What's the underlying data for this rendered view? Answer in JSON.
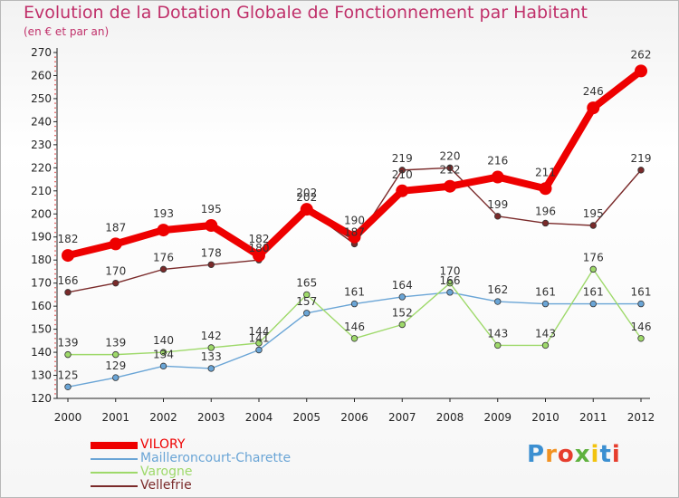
{
  "header": {
    "title": "Evolution de la Dotation Globale de Fonctionnement par Habitant",
    "subtitle": "(en € et par an)"
  },
  "logo": {
    "text": "Proxiti",
    "letters": [
      "P",
      "r",
      "o",
      "x",
      "i",
      "t",
      "i"
    ]
  },
  "chart_data": {
    "type": "line",
    "title": "Evolution de la Dotation Globale de Fonctionnement par Habitant",
    "subtitle": "(en € et par an)",
    "xlabel": "",
    "ylabel": "",
    "x": [
      "2000",
      "2001",
      "2002",
      "2003",
      "2004",
      "2005",
      "2006",
      "2007",
      "2008",
      "2009",
      "2010",
      "2011",
      "2012"
    ],
    "yticks": [
      120,
      130,
      140,
      150,
      160,
      170,
      180,
      190,
      200,
      210,
      220,
      230,
      240,
      250,
      260,
      270
    ],
    "ylim": [
      120,
      270
    ],
    "grid": false,
    "legend_position": "bottom-left",
    "series": [
      {
        "name": "VILORY",
        "color": "#ee0000",
        "values": [
          182,
          187,
          193,
          195,
          182,
          202,
          190,
          210,
          212,
          216,
          211,
          246,
          262
        ]
      },
      {
        "name": "Mailleroncourt-Charette",
        "color": "#6aa5d6",
        "values": [
          125,
          129,
          134,
          133,
          141,
          157,
          161,
          164,
          166,
          162,
          161,
          161,
          161
        ]
      },
      {
        "name": "Varogne",
        "color": "#9ed96a",
        "values": [
          139,
          139,
          140,
          142,
          144,
          165,
          146,
          152,
          170,
          143,
          143,
          176,
          146
        ]
      },
      {
        "name": "Vellefrie",
        "color": "#7a2a2a",
        "values": [
          166,
          170,
          176,
          178,
          180,
          202,
          187,
          219,
          220,
          199,
          196,
          195,
          219
        ]
      }
    ]
  }
}
